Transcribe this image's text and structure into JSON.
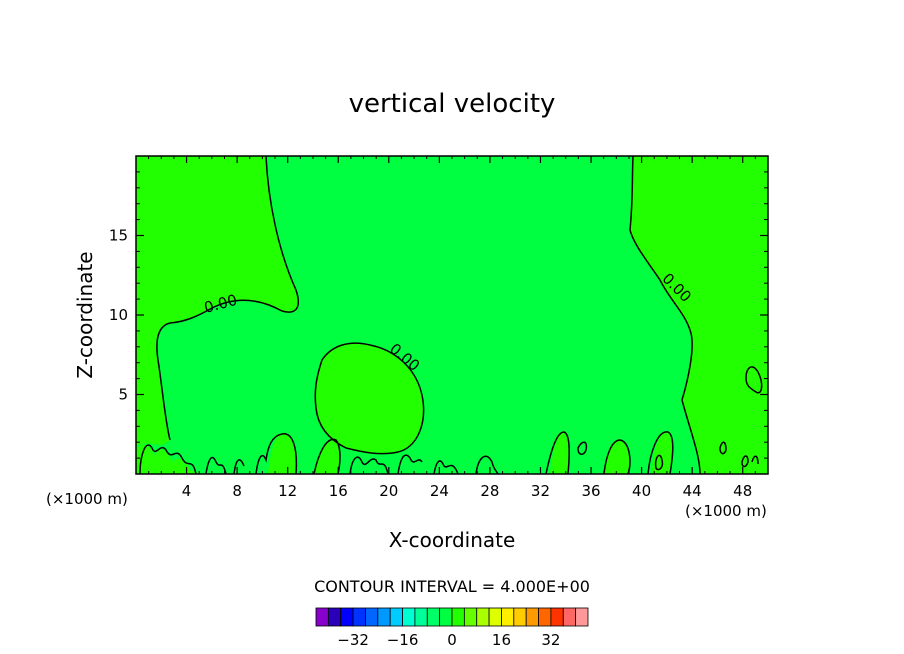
{
  "chart_data": {
    "type": "contour",
    "title": "vertical velocity",
    "xlabel": "X-coordinate",
    "ylabel": "Z-coordinate",
    "x_unit_left": "(×1000 m)",
    "x_unit_right": "(×1000 m)",
    "xlim": [
      0,
      50
    ],
    "ylim": [
      0,
      20
    ],
    "x_ticks": [
      4,
      8,
      12,
      16,
      20,
      24,
      28,
      32,
      36,
      40,
      44,
      48
    ],
    "y_ticks": [
      5,
      10,
      15
    ],
    "contour_interval_text": "CONTOUR INTERVAL = 4.000E+00",
    "contour_interval": 4.0,
    "contour_labels": [
      {
        "text": "0.00",
        "x": 6.8,
        "z": 10.4
      },
      {
        "text": "0.00",
        "x": 21.0,
        "z": 7.1
      },
      {
        "text": "0.00",
        "x": 42.5,
        "z": 11.5
      }
    ],
    "fill_colors": {
      "background_level": "#00ff40",
      "positive_region": "#22ff00"
    },
    "colorbar": {
      "colors": [
        "#8800cc",
        "#2a00b8",
        "#0000ff",
        "#0033ff",
        "#0066ff",
        "#0099ff",
        "#00ccff",
        "#00ffd0",
        "#00ff99",
        "#00ff66",
        "#00ff40",
        "#22ff00",
        "#66ff00",
        "#aaff00",
        "#ddff00",
        "#ffee00",
        "#ffcc00",
        "#ff9900",
        "#ff6600",
        "#ff3300",
        "#ff6666",
        "#ff9999"
      ],
      "tick_values": [
        -32,
        -16,
        0,
        16,
        32
      ],
      "tick_labels": [
        "−32",
        "−16",
        "0",
        "16",
        "32"
      ],
      "min": -44,
      "max": 44
    }
  }
}
